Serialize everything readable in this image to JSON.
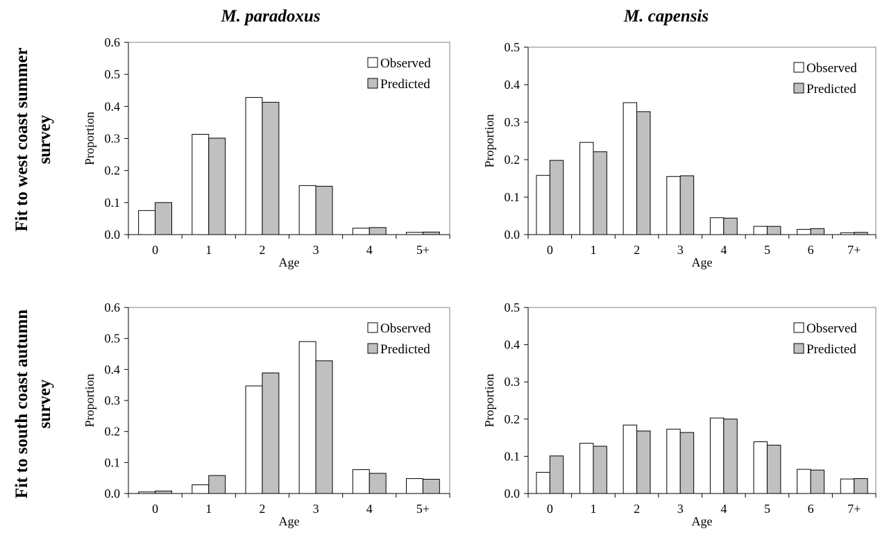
{
  "column_titles": [
    "M. paradoxus",
    "M. capensis"
  ],
  "row_titles": [
    [
      "Fit to west coast summer",
      "survey"
    ],
    [
      "Fit to south coast autumn",
      "survey"
    ]
  ],
  "colors": {
    "observed": "#ffffff",
    "predicted": "#c0c0c0",
    "axis": "#000000",
    "frame": "#808080"
  },
  "chart_data": [
    {
      "type": "bar",
      "panel": "top-left",
      "categories": [
        "0",
        "1",
        "2",
        "3",
        "4",
        "5+"
      ],
      "series": [
        {
          "name": "Observed",
          "values": [
            0.075,
            0.313,
            0.428,
            0.153,
            0.02,
            0.007
          ]
        },
        {
          "name": "Predicted",
          "values": [
            0.1,
            0.301,
            0.413,
            0.151,
            0.022,
            0.008
          ]
        }
      ],
      "xlabel": "Age",
      "ylabel": "Proportion",
      "ylim": [
        0,
        0.6
      ],
      "yticks": [
        "0.0",
        "0.1",
        "0.2",
        "0.3",
        "0.4",
        "0.5",
        "0.6"
      ],
      "legend": "top-right",
      "grid": false
    },
    {
      "type": "bar",
      "panel": "top-right",
      "categories": [
        "0",
        "1",
        "2",
        "3",
        "4",
        "5",
        "6",
        "7+"
      ],
      "series": [
        {
          "name": "Observed",
          "values": [
            0.158,
            0.246,
            0.352,
            0.155,
            0.045,
            0.022,
            0.014,
            0.005
          ]
        },
        {
          "name": "Predicted",
          "values": [
            0.198,
            0.221,
            0.328,
            0.157,
            0.044,
            0.022,
            0.016,
            0.006
          ]
        }
      ],
      "xlabel": "Age",
      "ylabel": "Proportion",
      "ylim": [
        0,
        0.5
      ],
      "yticks": [
        "0.0",
        "0.1",
        "0.2",
        "0.3",
        "0.4",
        "0.5"
      ],
      "legend": "top-right",
      "grid": false
    },
    {
      "type": "bar",
      "panel": "bottom-left",
      "categories": [
        "0",
        "1",
        "2",
        "3",
        "4",
        "5+"
      ],
      "series": [
        {
          "name": "Observed",
          "values": [
            0.005,
            0.028,
            0.347,
            0.49,
            0.077,
            0.048
          ]
        },
        {
          "name": "Predicted",
          "values": [
            0.008,
            0.058,
            0.389,
            0.428,
            0.065,
            0.046
          ]
        }
      ],
      "xlabel": "Age",
      "ylabel": "Proportion",
      "ylim": [
        0,
        0.6
      ],
      "yticks": [
        "0.0",
        "0.1",
        "0.2",
        "0.3",
        "0.4",
        "0.5",
        "0.6"
      ],
      "legend": "top-right",
      "grid": false
    },
    {
      "type": "bar",
      "panel": "bottom-right",
      "categories": [
        "0",
        "1",
        "2",
        "3",
        "4",
        "5",
        "6",
        "7+"
      ],
      "series": [
        {
          "name": "Observed",
          "values": [
            0.057,
            0.135,
            0.184,
            0.173,
            0.203,
            0.139,
            0.065,
            0.039
          ]
        },
        {
          "name": "Predicted",
          "values": [
            0.101,
            0.127,
            0.168,
            0.164,
            0.2,
            0.13,
            0.063,
            0.04
          ]
        }
      ],
      "xlabel": "Age",
      "ylabel": "Proportion",
      "ylim": [
        0,
        0.5
      ],
      "yticks": [
        "0.0",
        "0.1",
        "0.2",
        "0.3",
        "0.4",
        "0.5"
      ],
      "legend": "top-right",
      "grid": false
    }
  ]
}
